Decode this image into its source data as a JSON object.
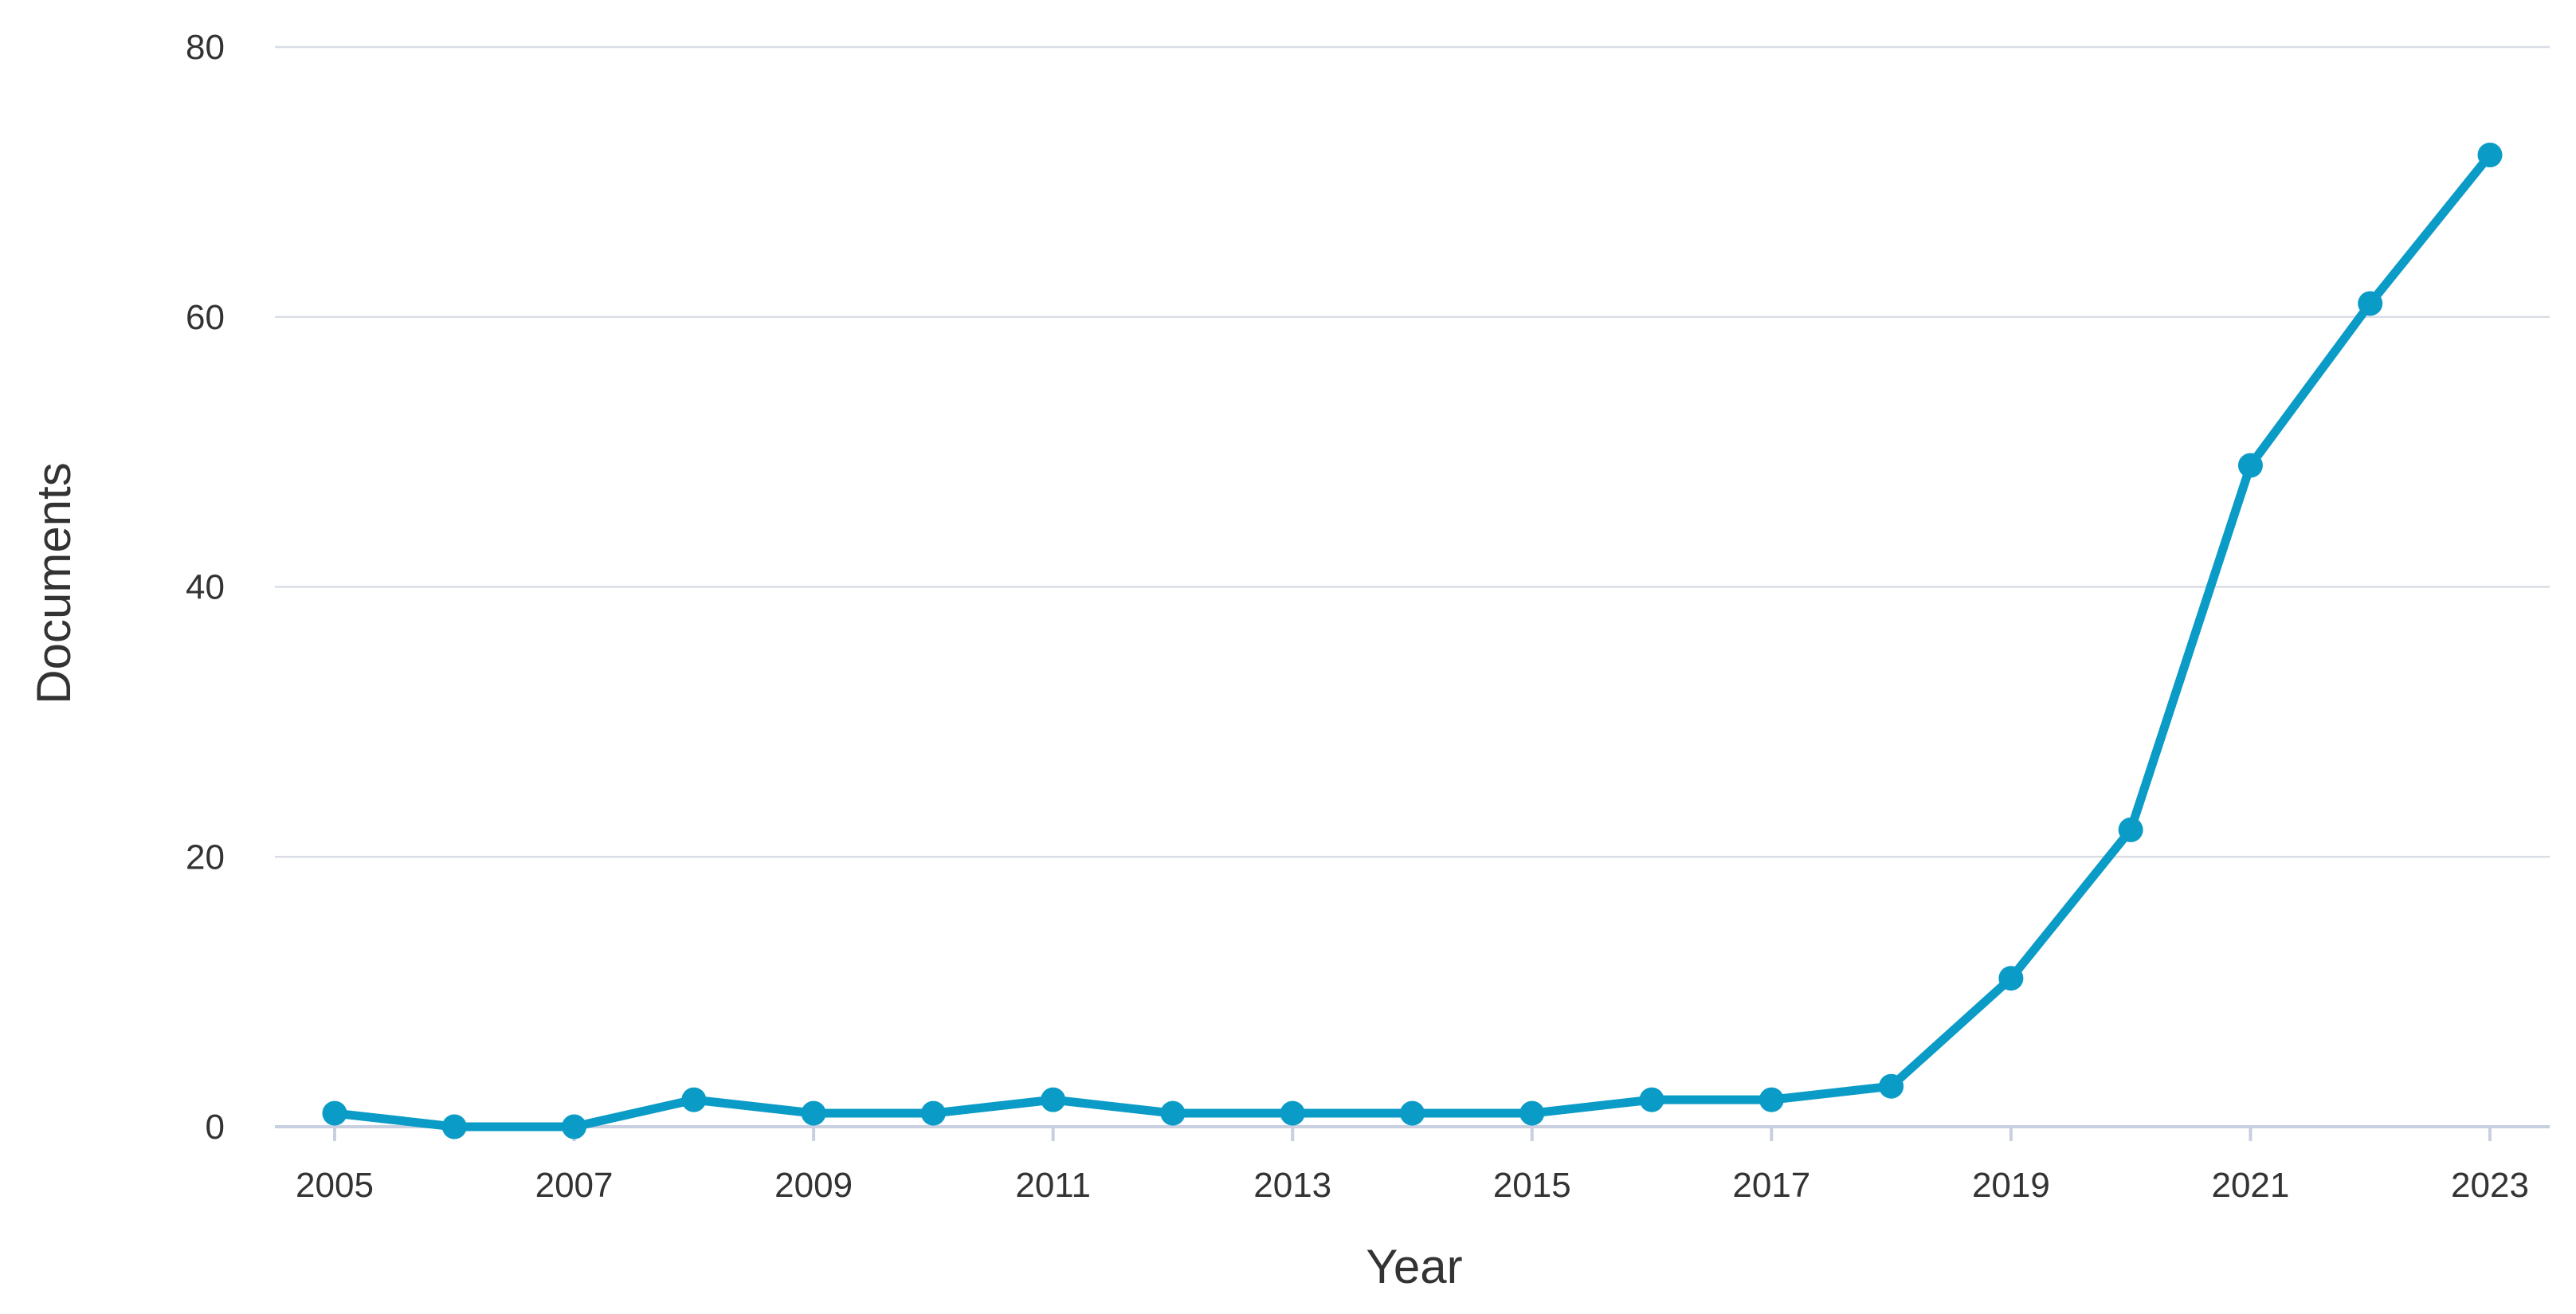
{
  "chart_data": {
    "type": "line",
    "title": "",
    "xlabel": "Year",
    "ylabel": "Documents",
    "x": [
      2005,
      2006,
      2007,
      2008,
      2009,
      2010,
      2011,
      2012,
      2013,
      2014,
      2015,
      2016,
      2017,
      2018,
      2019,
      2020,
      2021,
      2022,
      2023
    ],
    "series": [
      {
        "values": [
          1,
          0,
          0,
          2,
          1,
          1,
          2,
          1,
          1,
          1,
          1,
          2,
          2,
          3,
          11,
          22,
          49,
          61,
          72
        ]
      }
    ],
    "xticks": [
      "2005",
      "2007",
      "2009",
      "2011",
      "2013",
      "2015",
      "2017",
      "2019",
      "2021",
      "2023"
    ],
    "yticks": [
      "0",
      "20",
      "40",
      "60",
      "80"
    ],
    "xlim": [
      2005,
      2023
    ],
    "ylim": [
      0,
      80
    ],
    "grid": true,
    "legend": "none",
    "colors": {
      "line": "#0a9bc6",
      "grid": "#d9dde6",
      "axis": "#c8cfe0",
      "text": "#333333"
    }
  }
}
